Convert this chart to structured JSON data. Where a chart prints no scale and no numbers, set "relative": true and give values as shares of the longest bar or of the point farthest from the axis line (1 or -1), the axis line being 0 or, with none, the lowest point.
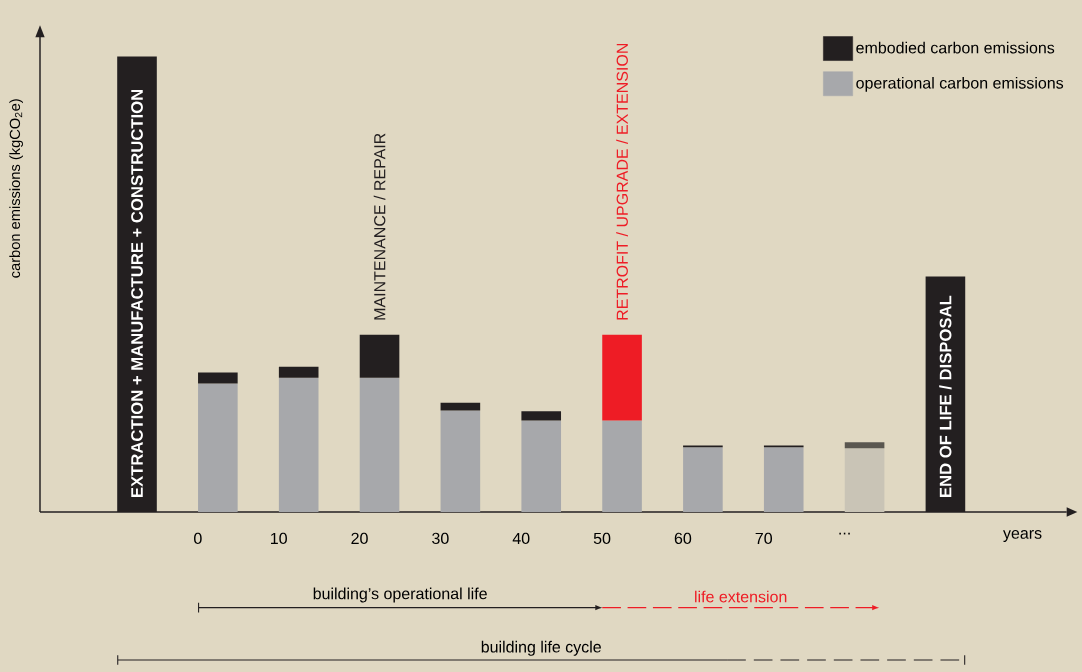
{
  "chart_data": {
    "type": "bar",
    "relative": true,
    "stacked": true,
    "legend": "top right",
    "ylabel": "carbon emissions (kgCO$_{2}$e)",
    "xlabel": "years",
    "categories": [
      null,
      "0",
      "10",
      "20",
      "30",
      "40",
      "50",
      "60",
      "70",
      "...",
      null
    ],
    "series": [
      {
        "name": "operational carbon emissions",
        "color": "#a7a8ab",
        "colors": [
          "#a7a8ab",
          "#a7a8ab",
          "#a7a8ab",
          "#a7a8ab",
          "#a7a8ab",
          "#a7a8ab",
          "#a7a8ab",
          "#a7a8ab",
          "#a7a8ab",
          "#c9c4b6",
          "#a7a8ab"
        ],
        "values": [
          null,
          0.282,
          0.295,
          0.295,
          0.223,
          0.201,
          0.201,
          0.142,
          0.142,
          0.14,
          null
        ]
      },
      {
        "name": "embodied carbon emissions",
        "color": "#231f20",
        "colors": [
          "#231f20",
          "#231f20",
          "#231f20",
          "#231f20",
          "#231f20",
          "#231f20",
          "#ee1c25",
          "#231f20",
          "#231f20",
          "#5a5750",
          "#231f20"
        ],
        "values": [
          1,
          0.024,
          0.024,
          0.094,
          0.017,
          0.02,
          0.188,
          0.004,
          0.004,
          0.013,
          0.517
        ]
      }
    ],
    "annotations": [
      "EXTRACTION + MANUFACTURE + CONSTRUCTION",
      "MAINTENANCE / REPAIR",
      "RETROFIT / UPGRADE / EXTENSION",
      "END OF LIFE / DISPOSAL",
      "building’s operational life",
      "life extension",
      "building life cycle"
    ]
  }
}
